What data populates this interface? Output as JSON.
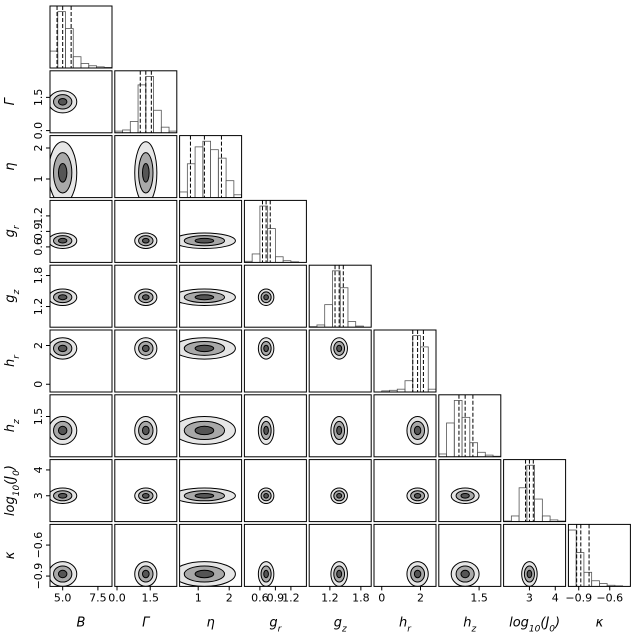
{
  "params": [
    {
      "label": [
        "B"
      ],
      "lim": [
        4.1,
        8.5
      ],
      "ticks": [
        {
          "value": 5,
          "label": "5.0"
        },
        {
          "value": 7.5,
          "label": "7.5"
        }
      ],
      "quantiles": [
        4.6,
        5.0,
        5.6
      ],
      "bins": [
        4.1,
        4.65,
        5.2,
        5.75,
        6.3,
        6.85,
        7.4,
        7.95,
        8.5
      ],
      "counts": [
        30,
        100,
        70,
        20,
        8,
        4,
        2,
        1
      ]
    },
    {
      "label": [
        "Γ"
      ],
      "lim": [
        -0.1,
        2.7
      ],
      "ticks": [
        {
          "value": 0,
          "label": "0.0"
        },
        1.5
      ],
      "quantiles": [
        1.05,
        1.3,
        1.55
      ],
      "bins": [
        -0.1,
        0.25,
        0.6,
        0.95,
        1.3,
        1.65,
        2.0,
        2.35,
        2.7
      ],
      "counts": [
        3,
        5,
        20,
        85,
        100,
        40,
        10,
        3
      ]
    },
    {
      "label": [
        "η"
      ],
      "lim": [
        0.4,
        2.4
      ],
      "ticks": [
        1,
        2
      ],
      "quantiles": [
        0.75,
        1.2,
        1.75
      ],
      "bins": [
        0.4,
        0.65,
        0.9,
        1.15,
        1.4,
        1.65,
        1.9,
        2.15,
        2.4
      ],
      "counts": [
        10,
        60,
        90,
        100,
        85,
        70,
        30,
        5
      ]
    },
    {
      "label": [
        "g",
        "r"
      ],
      "lim": [
        0.3,
        1.5
      ],
      "ticks": [
        0.6,
        0.9,
        1.2
      ],
      "quantiles": [
        0.65,
        0.72,
        0.8
      ],
      "bins": [
        0.3,
        0.45,
        0.6,
        0.75,
        0.9,
        1.05,
        1.2,
        1.35,
        1.5
      ],
      "counts": [
        2,
        15,
        100,
        60,
        10,
        3,
        1,
        0
      ]
    },
    {
      "label": [
        "g",
        "z"
      ],
      "lim": [
        0.8,
        2.0
      ],
      "ticks": [
        1.2,
        1.8
      ],
      "quantiles": [
        1.3,
        1.38,
        1.46
      ],
      "bins": [
        0.8,
        0.95,
        1.1,
        1.25,
        1.4,
        1.55,
        1.7,
        1.85,
        2.0
      ],
      "counts": [
        1,
        4,
        40,
        100,
        70,
        10,
        2,
        0
      ]
    },
    {
      "label": [
        "h",
        "r"
      ],
      "lim": [
        -0.4,
        2.8
      ],
      "ticks": [
        0,
        2
      ],
      "quantiles": [
        1.6,
        1.85,
        2.15
      ],
      "bins": [
        -0.4,
        0,
        0.4,
        0.8,
        1.2,
        1.6,
        2.0,
        2.4,
        2.8
      ],
      "counts": [
        0,
        2,
        3,
        5,
        20,
        100,
        80,
        5
      ]
    },
    {
      "label": [
        "h",
        "z"
      ],
      "lim": [
        0.2,
        2.2
      ],
      "ticks": [
        1.5
      ],
      "quantiles": [
        0.85,
        1.05,
        1.3
      ],
      "bins": [
        0.2,
        0.45,
        0.7,
        0.95,
        1.2,
        1.45,
        1.7,
        1.95,
        2.2
      ],
      "counts": [
        5,
        60,
        100,
        70,
        25,
        8,
        3,
        1
      ]
    },
    {
      "label": [
        "log",
        "10",
        "(J",
        "0",
        ")"
      ],
      "lim": [
        2.0,
        4.4
      ],
      "ticks": [
        3,
        4
      ],
      "quantiles": [
        2.85,
        3.0,
        3.15
      ],
      "bins": [
        2.0,
        2.3,
        2.6,
        2.9,
        3.2,
        3.5,
        3.8,
        4.1,
        4.4
      ],
      "counts": [
        1,
        10,
        60,
        100,
        40,
        10,
        3,
        1
      ]
    },
    {
      "label": [
        "κ"
      ],
      "lim": [
        -1.0,
        -0.4
      ],
      "ticks": [
        {
          "value": -0.9,
          "label": "−0.9"
        },
        {
          "value": -0.6,
          "label": "−0.6"
        }
      ],
      "quantiles": [
        -0.92,
        -0.88,
        -0.8
      ],
      "bins": [
        -1.0,
        -0.925,
        -0.85,
        -0.775,
        -0.7,
        -0.625,
        -0.55,
        -0.475,
        -0.4
      ],
      "counts": [
        100,
        60,
        25,
        10,
        5,
        2,
        1,
        0
      ]
    }
  ]
}
